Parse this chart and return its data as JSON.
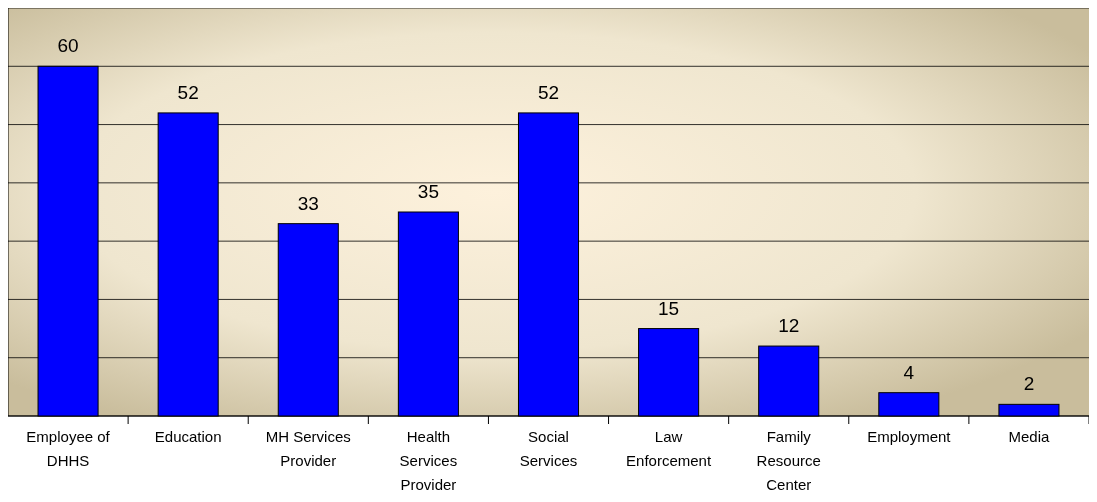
{
  "chart_data": {
    "type": "bar",
    "categories": [
      "Employee of DHHS",
      "Education",
      "MH Services Provider",
      "Health Services Provider",
      "Social Services",
      "Law Enforcement",
      "Family Resource Center",
      "Employment",
      "Media"
    ],
    "values": [
      60,
      52,
      33,
      35,
      52,
      15,
      12,
      4,
      2
    ],
    "color": "#0000ff",
    "data_labels": true,
    "grid": "y",
    "tick_labels": "x",
    "ylim": [
      0,
      70
    ],
    "yticks": [
      {
        "value": 0,
        "label": null
      },
      {
        "value": 10,
        "label": null
      },
      {
        "value": 20,
        "label": null
      },
      {
        "value": 30,
        "label": null
      },
      {
        "value": 40,
        "label": null
      },
      {
        "value": 50,
        "label": null
      },
      {
        "value": 60,
        "label": null
      },
      {
        "value": 70,
        "label": null
      }
    ]
  }
}
